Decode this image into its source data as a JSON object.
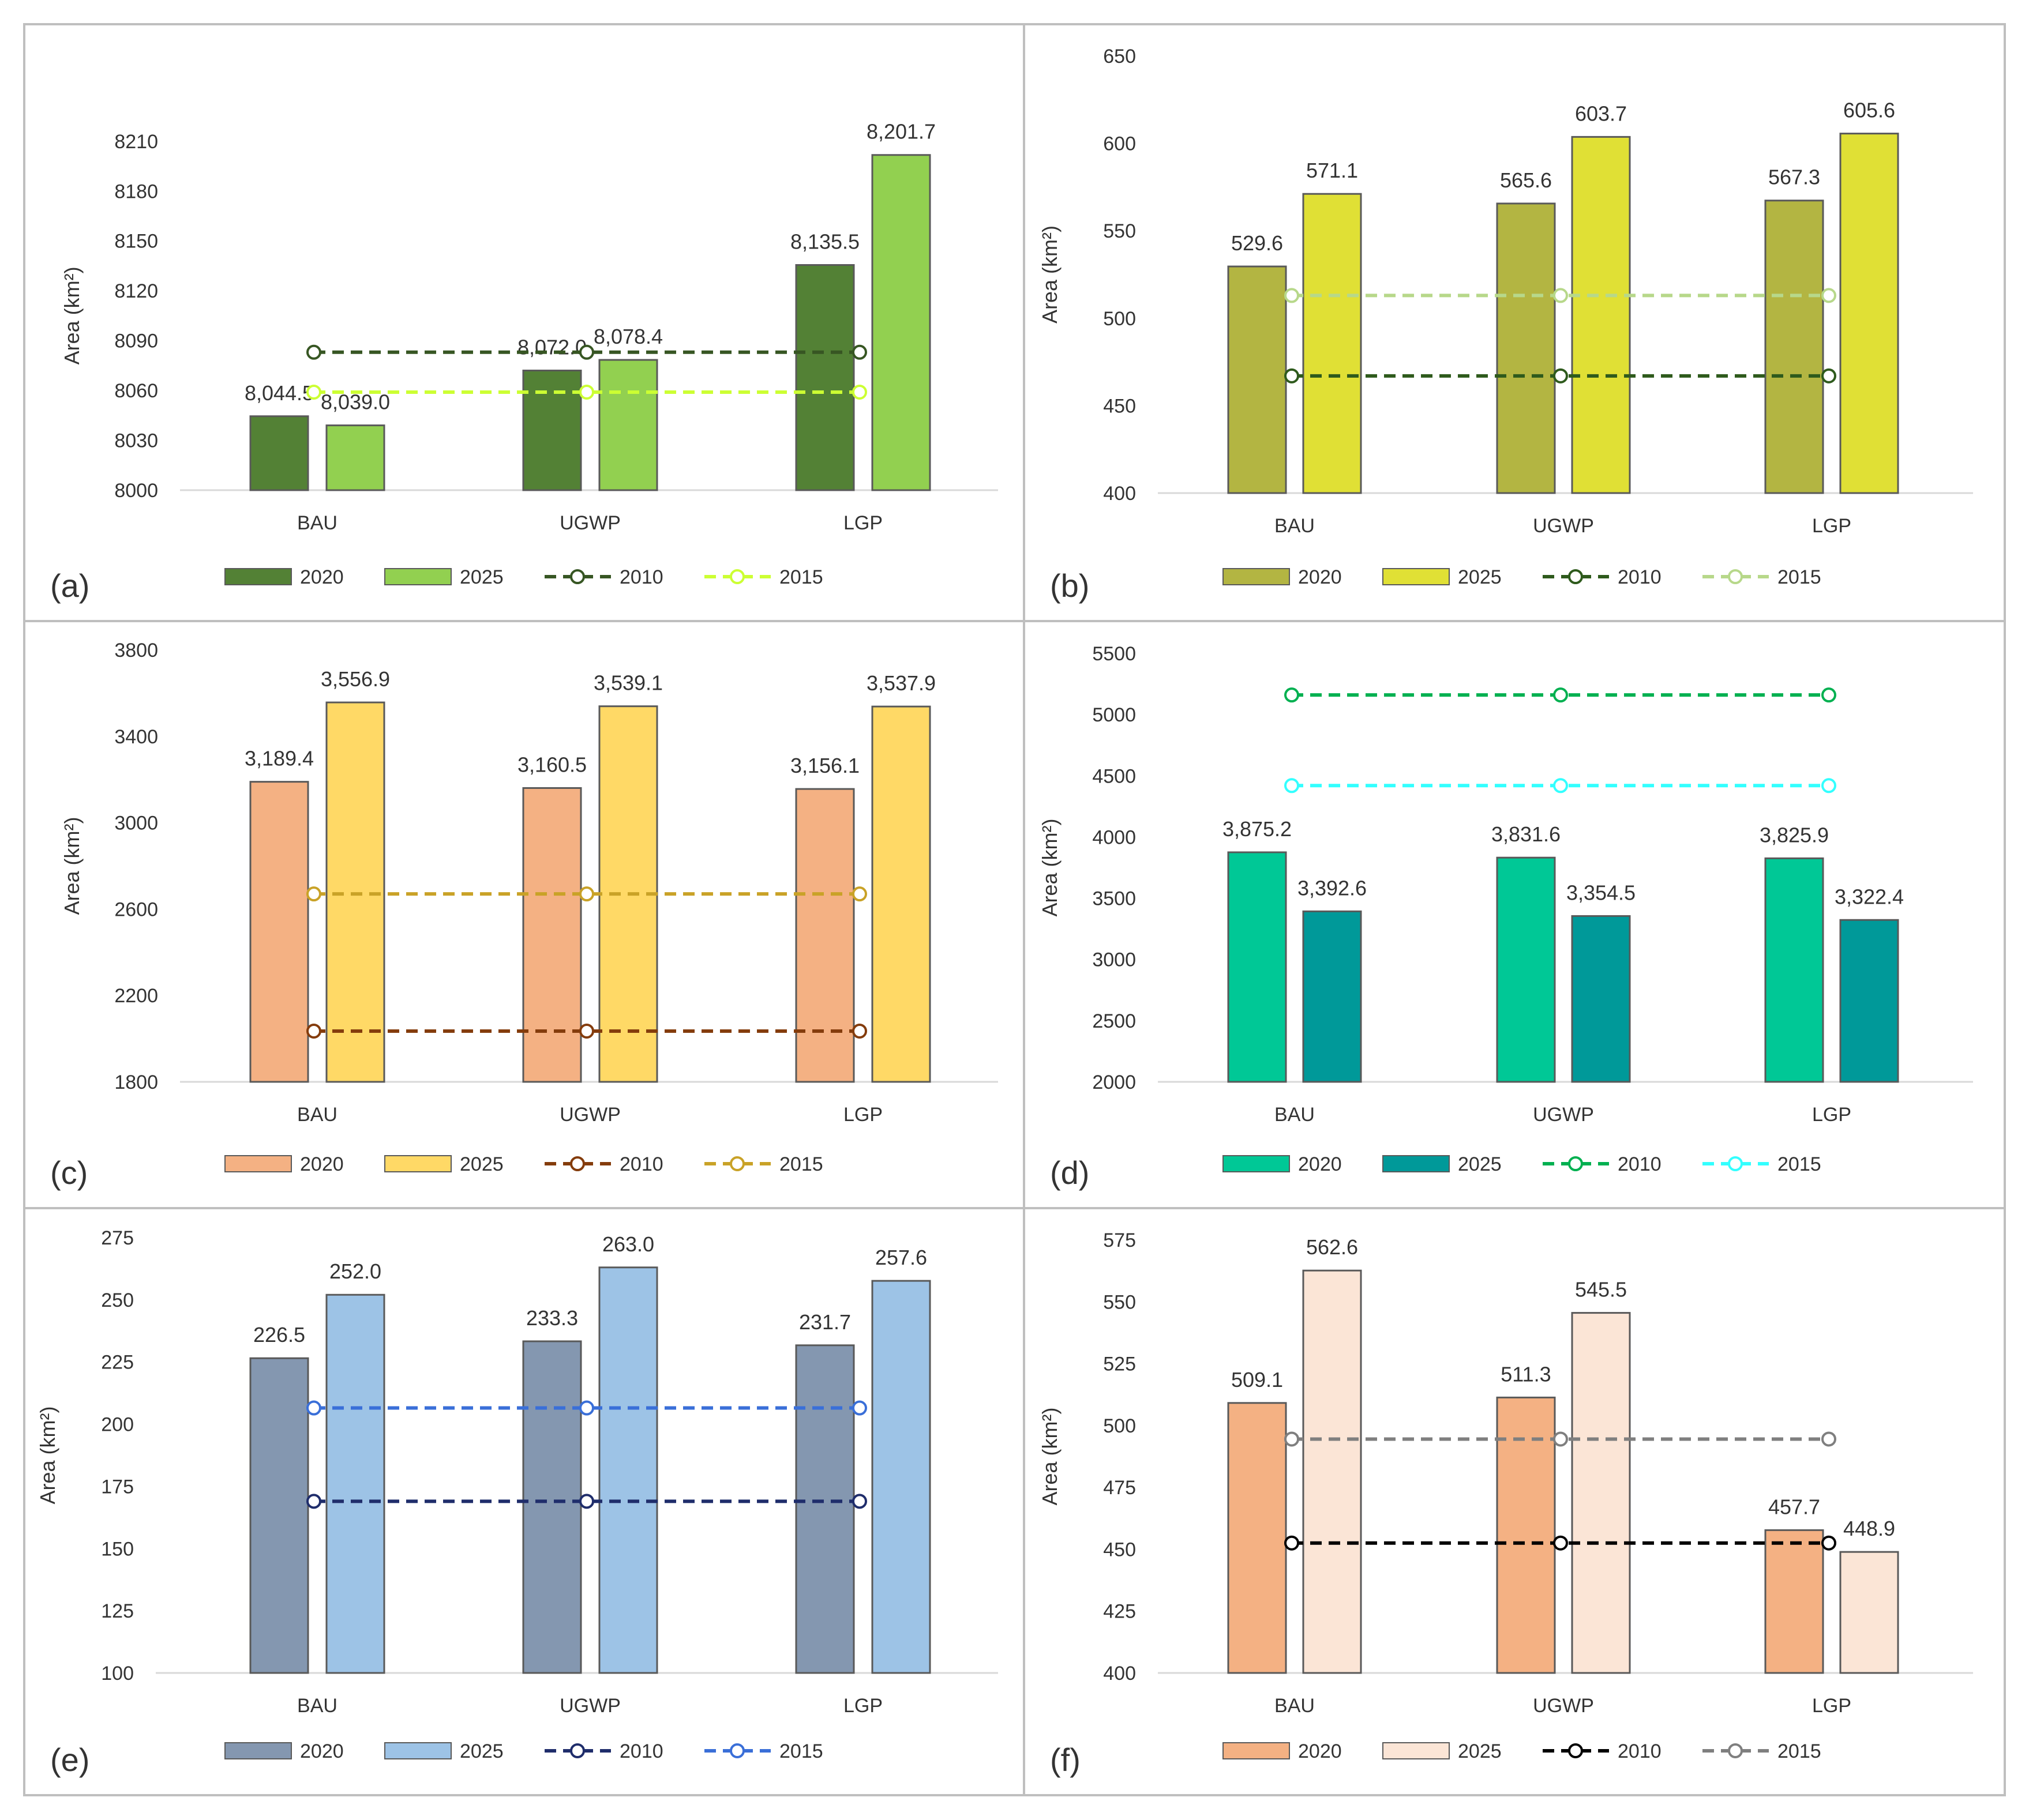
{
  "colors": {
    "panel_border": "#bfbfbf",
    "gridline": "#d9d9d9",
    "text": "#333333",
    "bar_outline": "#595959"
  },
  "chart_data": [
    {
      "type": "bar",
      "panel_label": "(a)",
      "ylabel": "Area (km²)",
      "categories": [
        "BAU",
        "UGWP",
        "LGP"
      ],
      "ylim": [
        8000,
        8220
      ],
      "yticks": [
        8000,
        8030,
        8060,
        8090,
        8120,
        8150,
        8180,
        8210
      ],
      "bars": [
        {
          "name": "2020",
          "color": "#538135",
          "values": [
            8044.5,
            8072.0,
            8135.5
          ],
          "labels": [
            "8,044.5",
            "8,072.0",
            "8,135.5"
          ]
        },
        {
          "name": "2025",
          "color": "#92d050",
          "values": [
            8039.0,
            8078.4,
            8201.7
          ],
          "labels": [
            "8,039.0",
            "8,078.4",
            "8,201.7"
          ]
        }
      ],
      "lines": [
        {
          "name": "2010",
          "color": "#375623",
          "value": 8083
        },
        {
          "name": "2015",
          "color": "#ccff33",
          "value": 8059
        }
      ]
    },
    {
      "type": "bar",
      "panel_label": "(b)",
      "ylabel": "Area (km²)",
      "categories": [
        "BAU",
        "UGWP",
        "LGP"
      ],
      "ylim": [
        400,
        650
      ],
      "yticks": [
        400,
        450,
        500,
        550,
        600,
        650
      ],
      "bars": [
        {
          "name": "2020",
          "color": "#b3b542",
          "values": [
            529.6,
            565.6,
            567.3
          ],
          "labels": [
            "529.6",
            "565.6",
            "567.3"
          ]
        },
        {
          "name": "2025",
          "color": "#e0e035",
          "values": [
            571.1,
            603.7,
            605.6
          ],
          "labels": [
            "571.1",
            "603.7",
            "605.6"
          ]
        }
      ],
      "lines": [
        {
          "name": "2010",
          "color": "#2e5a1c",
          "value": 467
        },
        {
          "name": "2015",
          "color": "#b7d88a",
          "value": 513
        }
      ]
    },
    {
      "type": "bar",
      "panel_label": "(c)",
      "ylabel": "Area (km²)",
      "categories": [
        "BAU",
        "UGWP",
        "LGP"
      ],
      "ylim": [
        1800,
        3800
      ],
      "yticks": [
        1800,
        2200,
        2600,
        3000,
        3400,
        3800
      ],
      "bars": [
        {
          "name": "2020",
          "color": "#f4b183",
          "values": [
            3189.4,
            3160.5,
            3156.1
          ],
          "labels": [
            "3,189.4",
            "3,160.5",
            "3,156.1"
          ]
        },
        {
          "name": "2025",
          "color": "#ffd966",
          "values": [
            3556.9,
            3539.1,
            3537.9
          ],
          "labels": [
            "3,556.9",
            "3,539.1",
            "3,537.9"
          ]
        }
      ],
      "lines": [
        {
          "name": "2010",
          "color": "#843c0c",
          "value": 2035
        },
        {
          "name": "2015",
          "color": "#c9a227",
          "value": 2670
        }
      ]
    },
    {
      "type": "bar",
      "panel_label": "(d)",
      "ylabel": "Area (km²)",
      "categories": [
        "BAU",
        "UGWP",
        "LGP"
      ],
      "ylim": [
        2000,
        5500
      ],
      "yticks": [
        2000,
        2500,
        3000,
        3500,
        4000,
        4500,
        5000,
        5500
      ],
      "bars": [
        {
          "name": "2020",
          "color": "#00c896",
          "values": [
            3875.2,
            3831.6,
            3825.9
          ],
          "labels": [
            "3,875.2",
            "3,831.6",
            "3,825.9"
          ]
        },
        {
          "name": "2025",
          "color": "#009999",
          "values": [
            3392.6,
            3354.5,
            3322.4
          ],
          "labels": [
            "3,392.6",
            "3,354.5",
            "3,322.4"
          ]
        }
      ],
      "lines": [
        {
          "name": "2010",
          "color": "#00b050",
          "value": 5160
        },
        {
          "name": "2015",
          "color": "#33ffff",
          "value": 4420
        }
      ]
    },
    {
      "type": "bar",
      "panel_label": "(e)",
      "ylabel": "Area (km²)",
      "categories": [
        "BAU",
        "UGWP",
        "LGP"
      ],
      "ylim": [
        100,
        275
      ],
      "yticks": [
        100,
        125,
        150,
        175,
        200,
        225,
        250,
        275
      ],
      "bars": [
        {
          "name": "2020",
          "color": "#8497b0",
          "values": [
            226.5,
            233.3,
            231.7
          ],
          "labels": [
            "226.5",
            "233.3",
            "231.7"
          ]
        },
        {
          "name": "2025",
          "color": "#9dc3e6",
          "values": [
            252.0,
            263.0,
            257.6
          ],
          "labels": [
            "252.0",
            "263.0",
            "257.6"
          ]
        }
      ],
      "lines": [
        {
          "name": "2010",
          "color": "#1f2d6b",
          "value": 169
        },
        {
          "name": "2015",
          "color": "#3a6fd8",
          "value": 206.5
        }
      ]
    },
    {
      "type": "bar",
      "panel_label": "(f)",
      "ylabel": "Area (km²)",
      "categories": [
        "BAU",
        "UGWP",
        "LGP"
      ],
      "ylim": [
        400,
        575
      ],
      "yticks": [
        400,
        425,
        450,
        475,
        500,
        525,
        550,
        575
      ],
      "bars": [
        {
          "name": "2020",
          "color": "#f4b183",
          "values": [
            509.1,
            511.3,
            457.7
          ],
          "labels": [
            "509.1",
            "511.3",
            "457.7"
          ]
        },
        {
          "name": "2025",
          "color": "#fbe5d6",
          "values": [
            562.6,
            545.5,
            448.9
          ],
          "labels": [
            "562.6",
            "545.5",
            "448.9"
          ]
        }
      ],
      "lines": [
        {
          "name": "2010",
          "color": "#000000",
          "value": 452.5
        },
        {
          "name": "2015",
          "color": "#7f7f7f",
          "value": 494.5
        }
      ]
    }
  ]
}
